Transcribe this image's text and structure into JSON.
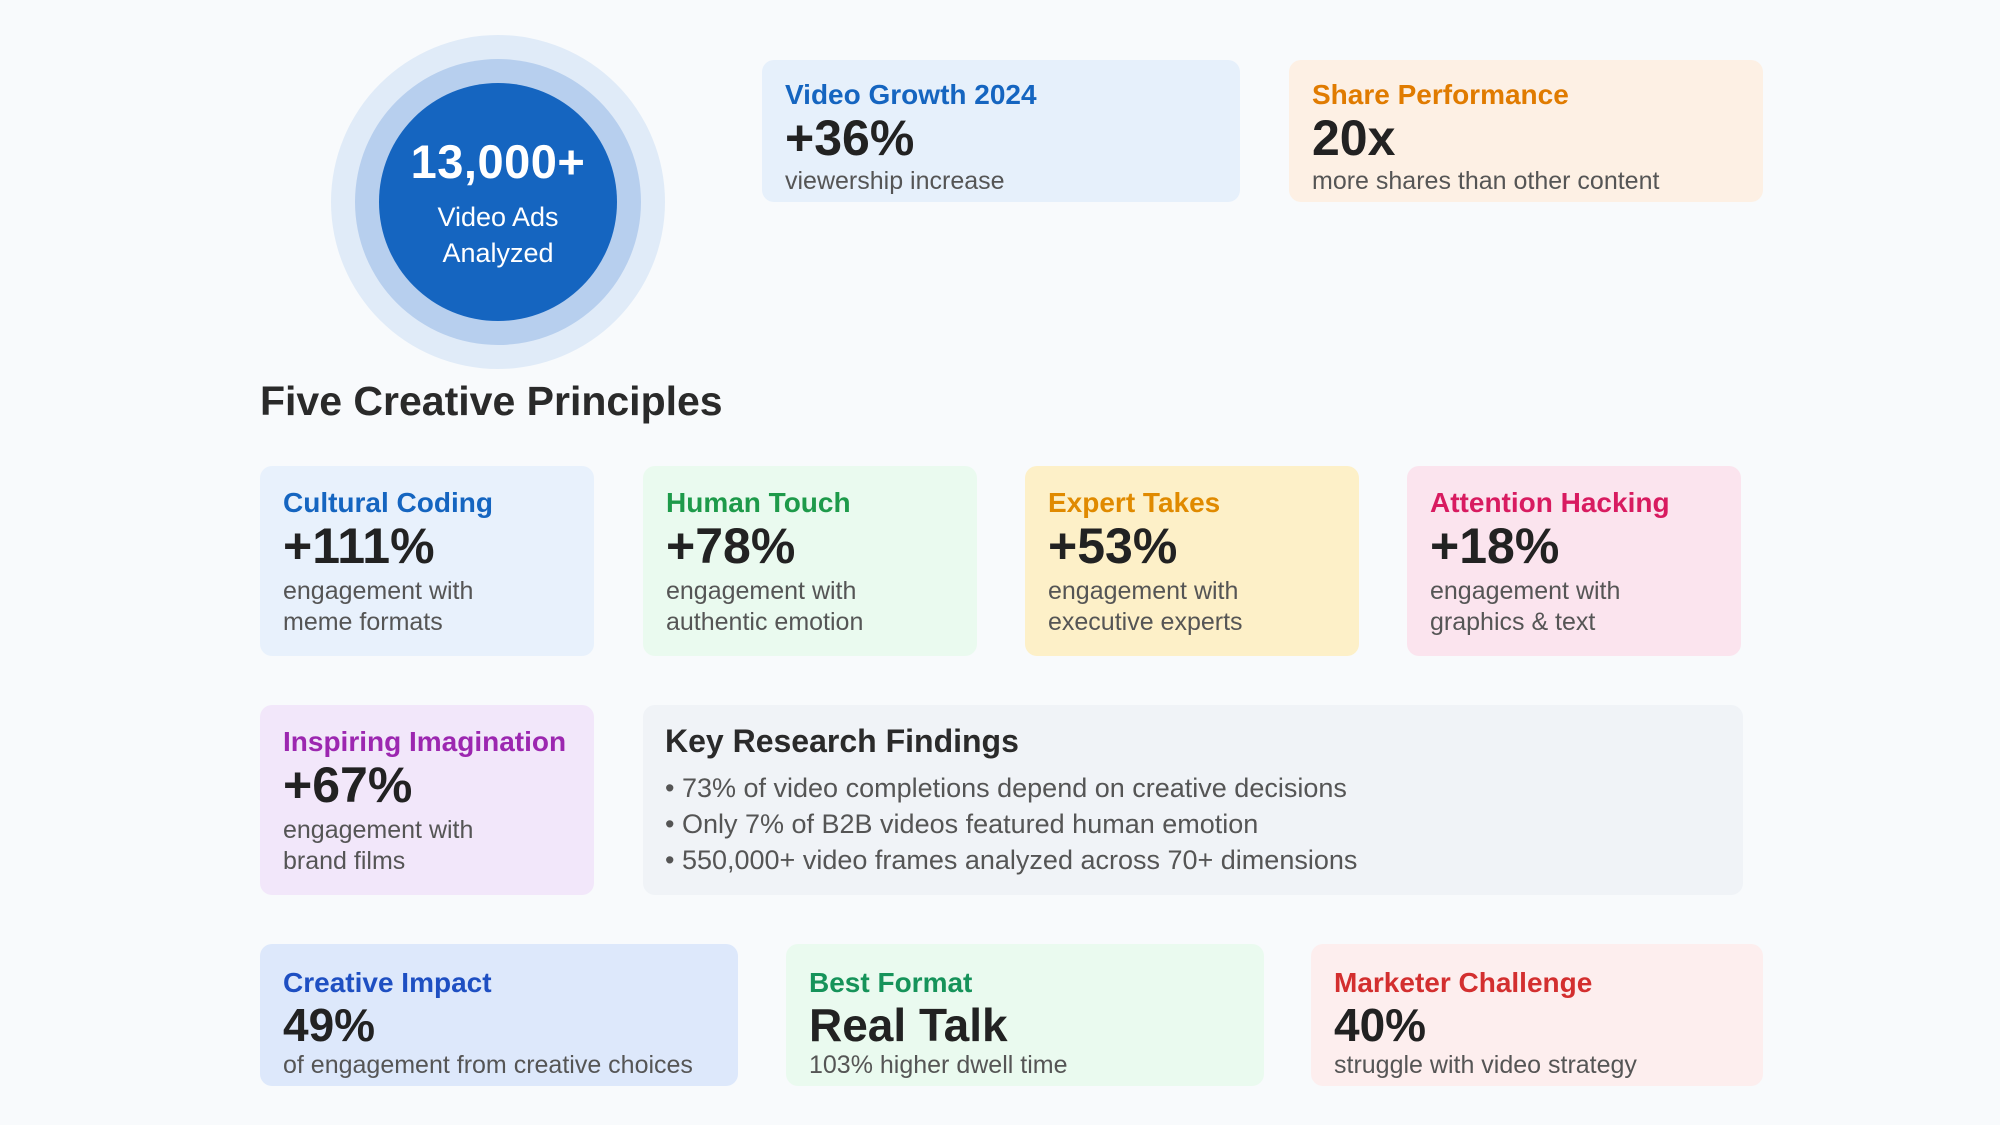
{
  "hero": {
    "value": "13,000+",
    "label": "Video Ads Analyzed"
  },
  "top_cards": [
    {
      "title": "Video Growth 2024",
      "value": "+36%",
      "desc": "viewership increase"
    },
    {
      "title": "Share Performance",
      "value": "20x",
      "desc": "more shares than other content"
    }
  ],
  "section_title": "Five Creative Principles",
  "principles": [
    {
      "title": "Cultural Coding",
      "value": "+111%",
      "desc_line1": "engagement with",
      "desc_line2": "meme formats"
    },
    {
      "title": "Human Touch",
      "value": "+78%",
      "desc_line1": "engagement with",
      "desc_line2": "authentic emotion"
    },
    {
      "title": "Expert Takes",
      "value": "+53%",
      "desc_line1": "engagement with",
      "desc_line2": "executive experts"
    },
    {
      "title": "Attention Hacking",
      "value": "+18%",
      "desc_line1": "engagement with",
      "desc_line2": "graphics & text"
    },
    {
      "title": "Inspiring Imagination",
      "value": "+67%",
      "desc_line1": "engagement with",
      "desc_line2": "brand films"
    }
  ],
  "findings": {
    "title": "Key Research Findings",
    "items": [
      "• 73% of video completions depend on creative decisions",
      "• Only 7% of B2B videos featured human emotion",
      "• 550,000+ video frames analyzed across 70+ dimensions"
    ]
  },
  "bottom_cards": [
    {
      "title": "Creative Impact",
      "value": "49%",
      "desc": "of engagement from creative choices"
    },
    {
      "title": "Best Format",
      "value": "Real Talk",
      "desc": "103% higher dwell time"
    },
    {
      "title": "Marketer Challenge",
      "value": "40%",
      "desc": "struggle with video strategy"
    }
  ],
  "colors": {
    "blue": "#1565c0",
    "orange": "#e07b00",
    "green": "#1e9a4a",
    "amber": "#e08a00",
    "pink": "#d81b60",
    "purple": "#9c27b0",
    "indigo": "#1e4fc2",
    "teal_green": "#16935a",
    "red": "#d32f2f"
  }
}
